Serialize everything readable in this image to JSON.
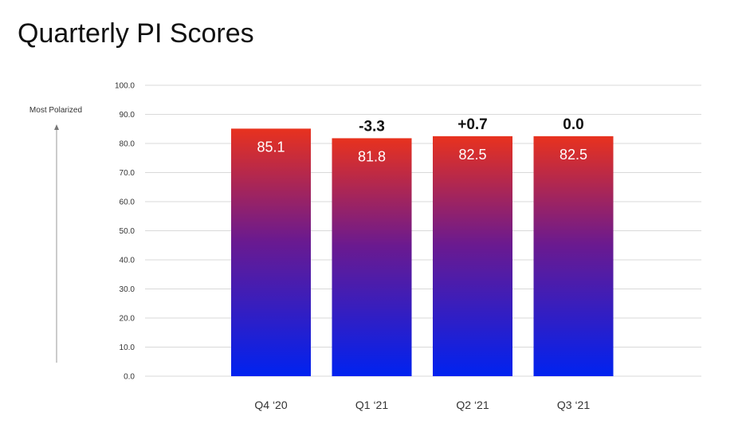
{
  "chart_data": {
    "type": "bar",
    "title": "Quarterly PI Scores",
    "ylabel": "Most Polarized",
    "xlabel": "",
    "categories": [
      "Q4 ‘20",
      "Q1 ‘21",
      "Q2 ‘21",
      "Q3 ‘21"
    ],
    "values": [
      85.1,
      81.8,
      82.5,
      82.5
    ],
    "value_labels": [
      "85.1",
      "81.8",
      "82.5",
      "82.5"
    ],
    "change_labels": [
      "",
      "-3.3",
      "+0.7",
      "0.0"
    ],
    "ylim": [
      0,
      100
    ],
    "yticks": [
      "0.0",
      "10.0",
      "20.0",
      "30.0",
      "40.0",
      "50.0",
      "60.0",
      "70.0",
      "80.0",
      "90.0",
      "100.0"
    ],
    "grid": true,
    "legend": "none",
    "colors": {
      "top": "#e8321e",
      "middle": "#6b1a8f",
      "bottom": "#0022f0",
      "grid": "#d9d9d9"
    }
  }
}
